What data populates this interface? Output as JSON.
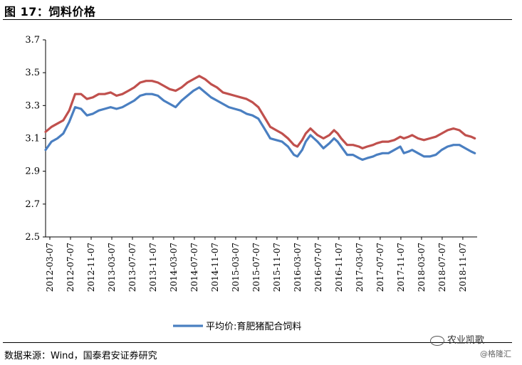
{
  "figure": {
    "title": "图 17：饲料价格",
    "source": "数据来源：Wind，国泰君安证券研究",
    "watermark": "农业凯歌",
    "watermark2": "@格隆汇"
  },
  "colors": {
    "blue": "#4a7fc1",
    "red": "#c0504d"
  },
  "chart_data": {
    "type": "line",
    "title": "",
    "xlabel": "",
    "ylabel": "",
    "ylim": [
      2.5,
      3.7
    ],
    "yticks": [
      "2.5",
      "2.7",
      "2.9",
      "3.1",
      "3.3",
      "3.5",
      "3.7"
    ],
    "xticks": [
      "2012-03-07",
      "2012-07-07",
      "2012-11-07",
      "2013-03-07",
      "2013-07-07",
      "2013-11-07",
      "2014-03-07",
      "2014-07-07",
      "2014-11-07",
      "2015-03-07",
      "2015-07-07",
      "2015-11-07",
      "2016-03-07",
      "2016-07-07",
      "2016-11-07",
      "2017-03-07",
      "2017-07-07",
      "2017-11-07",
      "2018-03-07",
      "2018-07-07",
      "2018-11-07"
    ],
    "legend": [
      "平均价:育肥猪配合饲料"
    ],
    "series": [
      {
        "name": "平均价:育肥猪配合饲料",
        "color": "#4a7fc1",
        "points": [
          [
            0,
            3.03
          ],
          [
            0.5,
            3.08
          ],
          [
            1,
            3.1
          ],
          [
            1.5,
            3.13
          ],
          [
            2,
            3.2
          ],
          [
            2.5,
            3.29
          ],
          [
            3,
            3.28
          ],
          [
            3.5,
            3.24
          ],
          [
            4,
            3.25
          ],
          [
            4.5,
            3.27
          ],
          [
            5,
            3.28
          ],
          [
            5.5,
            3.29
          ],
          [
            6,
            3.28
          ],
          [
            6.5,
            3.29
          ],
          [
            7,
            3.31
          ],
          [
            7.5,
            3.33
          ],
          [
            8,
            3.36
          ],
          [
            8.5,
            3.37
          ],
          [
            9,
            3.37
          ],
          [
            9.5,
            3.36
          ],
          [
            10,
            3.33
          ],
          [
            10.5,
            3.31
          ],
          [
            11,
            3.29
          ],
          [
            11.5,
            3.33
          ],
          [
            12,
            3.36
          ],
          [
            12.5,
            3.39
          ],
          [
            13,
            3.41
          ],
          [
            13.5,
            3.38
          ],
          [
            14,
            3.35
          ],
          [
            14.5,
            3.33
          ],
          [
            15,
            3.31
          ],
          [
            15.5,
            3.29
          ],
          [
            16,
            3.28
          ],
          [
            16.5,
            3.27
          ],
          [
            17,
            3.25
          ],
          [
            17.5,
            3.24
          ],
          [
            18,
            3.22
          ],
          [
            18.5,
            3.16
          ],
          [
            19,
            3.1
          ],
          [
            19.5,
            3.09
          ],
          [
            20,
            3.08
          ],
          [
            20.5,
            3.05
          ],
          [
            21,
            3.0
          ],
          [
            21.3,
            2.99
          ],
          [
            21.7,
            3.03
          ],
          [
            22,
            3.08
          ],
          [
            22.4,
            3.12
          ],
          [
            22.7,
            3.1
          ],
          [
            23,
            3.08
          ],
          [
            23.5,
            3.04
          ],
          [
            24,
            3.07
          ],
          [
            24.4,
            3.1
          ],
          [
            24.7,
            3.08
          ],
          [
            25,
            3.05
          ],
          [
            25.5,
            3.0
          ],
          [
            26,
            3.0
          ],
          [
            26.5,
            2.98
          ],
          [
            26.8,
            2.97
          ],
          [
            27.2,
            2.98
          ],
          [
            27.7,
            2.99
          ],
          [
            28,
            3.0
          ],
          [
            28.5,
            3.01
          ],
          [
            29,
            3.01
          ],
          [
            29.5,
            3.03
          ],
          [
            30,
            3.05
          ],
          [
            30.3,
            3.01
          ],
          [
            30.7,
            3.02
          ],
          [
            31,
            3.03
          ],
          [
            31.5,
            3.01
          ],
          [
            32,
            2.99
          ],
          [
            32.5,
            2.99
          ],
          [
            33,
            3.0
          ],
          [
            33.5,
            3.03
          ],
          [
            34,
            3.05
          ],
          [
            34.5,
            3.06
          ],
          [
            35,
            3.06
          ],
          [
            35.5,
            3.04
          ],
          [
            36,
            3.02
          ],
          [
            36.3,
            3.01
          ]
        ]
      },
      {
        "name": "",
        "color": "#c0504d",
        "points": [
          [
            0,
            3.14
          ],
          [
            0.5,
            3.17
          ],
          [
            1,
            3.19
          ],
          [
            1.5,
            3.21
          ],
          [
            2,
            3.27
          ],
          [
            2.5,
            3.37
          ],
          [
            3,
            3.37
          ],
          [
            3.5,
            3.34
          ],
          [
            4,
            3.35
          ],
          [
            4.5,
            3.37
          ],
          [
            5,
            3.37
          ],
          [
            5.5,
            3.38
          ],
          [
            6,
            3.36
          ],
          [
            6.5,
            3.37
          ],
          [
            7,
            3.39
          ],
          [
            7.5,
            3.41
          ],
          [
            8,
            3.44
          ],
          [
            8.5,
            3.45
          ],
          [
            9,
            3.45
          ],
          [
            9.5,
            3.44
          ],
          [
            10,
            3.42
          ],
          [
            10.5,
            3.4
          ],
          [
            11,
            3.39
          ],
          [
            11.5,
            3.41
          ],
          [
            12,
            3.44
          ],
          [
            12.5,
            3.46
          ],
          [
            13,
            3.48
          ],
          [
            13.5,
            3.46
          ],
          [
            14,
            3.43
          ],
          [
            14.5,
            3.41
          ],
          [
            15,
            3.38
          ],
          [
            15.5,
            3.37
          ],
          [
            16,
            3.36
          ],
          [
            16.5,
            3.35
          ],
          [
            17,
            3.34
          ],
          [
            17.5,
            3.32
          ],
          [
            18,
            3.29
          ],
          [
            18.5,
            3.23
          ],
          [
            19,
            3.17
          ],
          [
            19.5,
            3.15
          ],
          [
            20,
            3.13
          ],
          [
            20.5,
            3.1
          ],
          [
            21,
            3.06
          ],
          [
            21.3,
            3.05
          ],
          [
            21.7,
            3.09
          ],
          [
            22,
            3.13
          ],
          [
            22.4,
            3.16
          ],
          [
            22.7,
            3.14
          ],
          [
            23,
            3.12
          ],
          [
            23.5,
            3.1
          ],
          [
            24,
            3.12
          ],
          [
            24.4,
            3.15
          ],
          [
            24.7,
            3.13
          ],
          [
            25,
            3.1
          ],
          [
            25.5,
            3.06
          ],
          [
            26,
            3.06
          ],
          [
            26.5,
            3.05
          ],
          [
            26.8,
            3.04
          ],
          [
            27.2,
            3.05
          ],
          [
            27.7,
            3.06
          ],
          [
            28,
            3.07
          ],
          [
            28.5,
            3.08
          ],
          [
            29,
            3.08
          ],
          [
            29.5,
            3.09
          ],
          [
            30,
            3.11
          ],
          [
            30.3,
            3.1
          ],
          [
            30.7,
            3.11
          ],
          [
            31,
            3.12
          ],
          [
            31.5,
            3.1
          ],
          [
            32,
            3.09
          ],
          [
            32.5,
            3.1
          ],
          [
            33,
            3.11
          ],
          [
            33.5,
            3.13
          ],
          [
            34,
            3.15
          ],
          [
            34.5,
            3.16
          ],
          [
            35,
            3.15
          ],
          [
            35.5,
            3.12
          ],
          [
            36,
            3.11
          ],
          [
            36.3,
            3.1
          ]
        ]
      }
    ]
  }
}
